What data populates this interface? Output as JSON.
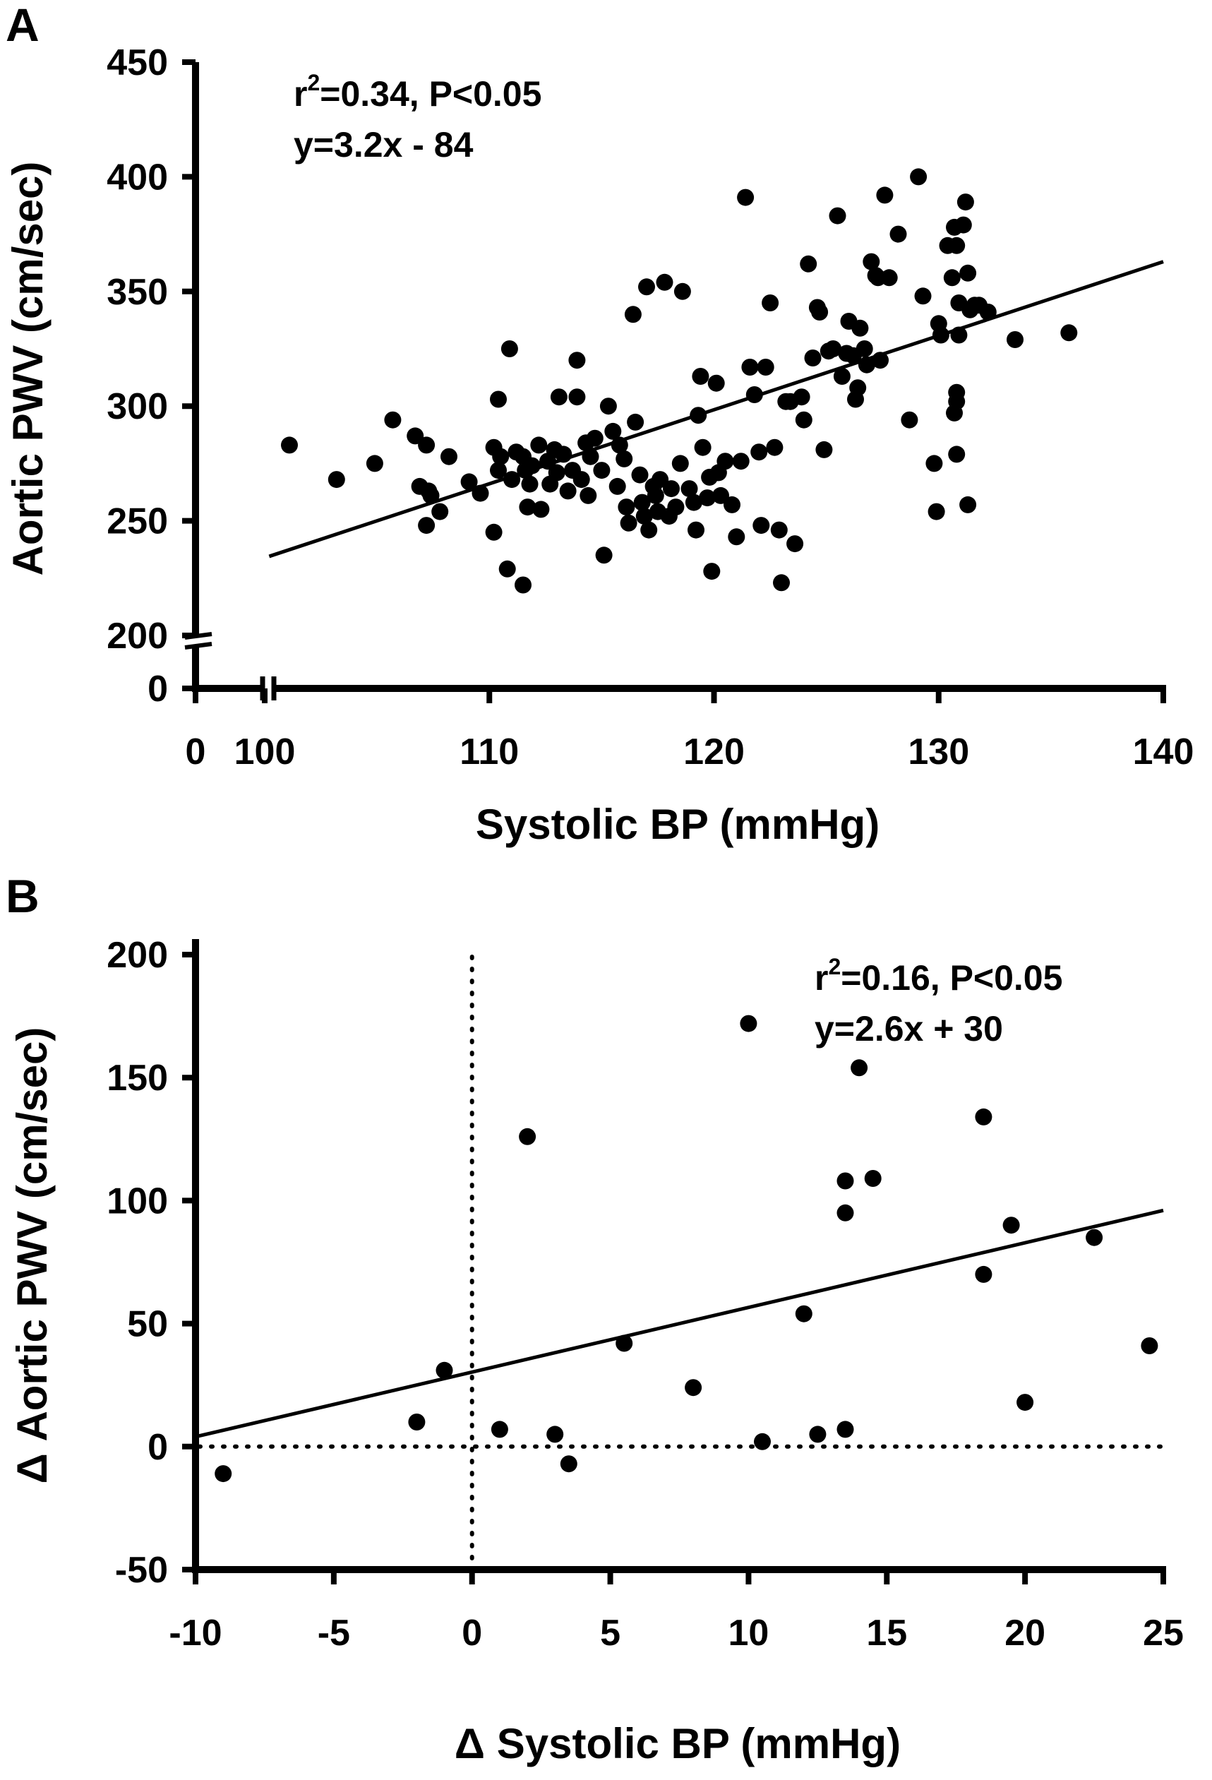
{
  "chart_data": [
    {
      "panel": "A",
      "type": "scatter",
      "xlabel": "Systolic BP (mmHg)",
      "ylabel": "Aortic PWV (cm/sec)",
      "x_ticks": [
        "0",
        "100",
        "110",
        "120",
        "130",
        "140"
      ],
      "y_ticks": [
        "0",
        "200",
        "250",
        "300",
        "350",
        "400",
        "450"
      ],
      "xlim": [
        100,
        140
      ],
      "ylim": [
        200,
        450
      ],
      "axis_break_x": "0 to 100",
      "axis_break_y": "0 to 200",
      "stats": {
        "r2_prefix": "r",
        "r2_sup": "2",
        "r2_text": "=0.34,  P<0.05",
        "equation": "y=3.2x - 84"
      },
      "fit": {
        "slope": 3.2,
        "x_from": 100.2,
        "x_to": 140,
        "y_from": 234.5,
        "y_to": 363
      },
      "points": [
        [
          101.1,
          283
        ],
        [
          103.2,
          268
        ],
        [
          104.9,
          275
        ],
        [
          105.7,
          294
        ],
        [
          106.7,
          287
        ],
        [
          106.9,
          265
        ],
        [
          107.2,
          283
        ],
        [
          107.2,
          248
        ],
        [
          107.3,
          263
        ],
        [
          107.4,
          261
        ],
        [
          107.8,
          254
        ],
        [
          108.2,
          278
        ],
        [
          109.1,
          267
        ],
        [
          109.6,
          262
        ],
        [
          110.2,
          282
        ],
        [
          110.4,
          303
        ],
        [
          110.5,
          278
        ],
        [
          110.4,
          272
        ],
        [
          110.2,
          245
        ],
        [
          110.8,
          229
        ],
        [
          110.9,
          325
        ],
        [
          111.0,
          268
        ],
        [
          111.2,
          280
        ],
        [
          111.5,
          278
        ],
        [
          111.6,
          272
        ],
        [
          111.8,
          266
        ],
        [
          111.7,
          256
        ],
        [
          111.5,
          222
        ],
        [
          111.9,
          274
        ],
        [
          112.2,
          283
        ],
        [
          112.3,
          255
        ],
        [
          112.6,
          276
        ],
        [
          112.7,
          266
        ],
        [
          112.9,
          281
        ],
        [
          113.0,
          271
        ],
        [
          113.1,
          304
        ],
        [
          113.3,
          279
        ],
        [
          113.5,
          263
        ],
        [
          113.7,
          272
        ],
        [
          113.9,
          320
        ],
        [
          113.9,
          304
        ],
        [
          114.1,
          268
        ],
        [
          114.3,
          284
        ],
        [
          114.4,
          261
        ],
        [
          114.5,
          278
        ],
        [
          114.7,
          286
        ],
        [
          115.0,
          272
        ],
        [
          115.1,
          235
        ],
        [
          115.3,
          300
        ],
        [
          115.5,
          289
        ],
        [
          115.7,
          265
        ],
        [
          115.8,
          283
        ],
        [
          116.0,
          277
        ],
        [
          116.1,
          256
        ],
        [
          116.2,
          249
        ],
        [
          116.4,
          340
        ],
        [
          116.5,
          293
        ],
        [
          116.7,
          270
        ],
        [
          116.8,
          258
        ],
        [
          116.9,
          252
        ],
        [
          117.0,
          352
        ],
        [
          117.1,
          246
        ],
        [
          117.3,
          265
        ],
        [
          117.4,
          261
        ],
        [
          117.5,
          254
        ],
        [
          117.6,
          268
        ],
        [
          117.8,
          354
        ],
        [
          118.0,
          252
        ],
        [
          118.1,
          264
        ],
        [
          118.3,
          256
        ],
        [
          118.5,
          275
        ],
        [
          118.6,
          350
        ],
        [
          118.9,
          264
        ],
        [
          119.1,
          258
        ],
        [
          119.2,
          246
        ],
        [
          119.3,
          296
        ],
        [
          119.4,
          313
        ],
        [
          119.5,
          282
        ],
        [
          119.7,
          260
        ],
        [
          119.8,
          269
        ],
        [
          119.9,
          228
        ],
        [
          120.1,
          310
        ],
        [
          120.2,
          271
        ],
        [
          120.3,
          261
        ],
        [
          120.5,
          276
        ],
        [
          120.8,
          257
        ],
        [
          121.0,
          243
        ],
        [
          121.2,
          276
        ],
        [
          121.4,
          391
        ],
        [
          121.6,
          317
        ],
        [
          121.8,
          305
        ],
        [
          122.0,
          280
        ],
        [
          122.1,
          248
        ],
        [
          122.3,
          317
        ],
        [
          122.5,
          345
        ],
        [
          122.7,
          282
        ],
        [
          122.9,
          246
        ],
        [
          123.0,
          223
        ],
        [
          123.2,
          302
        ],
        [
          123.4,
          302
        ],
        [
          123.6,
          240
        ],
        [
          123.9,
          304
        ],
        [
          124.0,
          294
        ],
        [
          124.2,
          362
        ],
        [
          124.4,
          321
        ],
        [
          124.6,
          343
        ],
        [
          124.7,
          341
        ],
        [
          124.9,
          281
        ],
        [
          125.1,
          324
        ],
        [
          125.3,
          325
        ],
        [
          125.5,
          383
        ],
        [
          125.7,
          313
        ],
        [
          125.9,
          323
        ],
        [
          126.0,
          337
        ],
        [
          126.2,
          322
        ],
        [
          126.3,
          303
        ],
        [
          126.4,
          308
        ],
        [
          126.5,
          334
        ],
        [
          126.7,
          325
        ],
        [
          126.8,
          318
        ],
        [
          127.0,
          363
        ],
        [
          127.2,
          357
        ],
        [
          127.3,
          356
        ],
        [
          127.4,
          320
        ],
        [
          127.6,
          392
        ],
        [
          127.8,
          356
        ],
        [
          128.2,
          375
        ],
        [
          128.7,
          294
        ],
        [
          129.1,
          400
        ],
        [
          129.3,
          348
        ],
        [
          129.8,
          275
        ],
        [
          129.9,
          254
        ],
        [
          130.0,
          336
        ],
        [
          130.1,
          331
        ],
        [
          130.4,
          370
        ],
        [
          130.6,
          356
        ],
        [
          130.7,
          378
        ],
        [
          130.8,
          370
        ],
        [
          130.9,
          345
        ],
        [
          130.9,
          331
        ],
        [
          130.8,
          306
        ],
        [
          130.8,
          302
        ],
        [
          130.7,
          297
        ],
        [
          130.8,
          279
        ],
        [
          131.1,
          379
        ],
        [
          131.2,
          389
        ],
        [
          131.3,
          358
        ],
        [
          131.4,
          342
        ],
        [
          131.3,
          257
        ],
        [
          131.6,
          344
        ],
        [
          131.8,
          344
        ],
        [
          132.2,
          341
        ],
        [
          133.4,
          329
        ],
        [
          135.8,
          332
        ]
      ]
    },
    {
      "panel": "B",
      "type": "scatter",
      "xlabel": "Δ Systolic BP (mmHg)",
      "ylabel": "Δ Aortic PWV (cm/sec)",
      "x_ticks": [
        "-10",
        "-5",
        "0",
        "5",
        "10",
        "15",
        "20",
        "25"
      ],
      "y_ticks": [
        "-50",
        "0",
        "50",
        "100",
        "150",
        "200"
      ],
      "xlim": [
        -10,
        25
      ],
      "ylim": [
        -50,
        200
      ],
      "stats": {
        "r2_prefix": "r",
        "r2_sup": "2",
        "r2_text": "=0.16,  P<0.05",
        "equation": "y=2.6x + 30"
      },
      "fit": {
        "slope": 2.6,
        "x_from": -10,
        "x_to": 25,
        "y_from": 4,
        "y_to": 96
      },
      "reference_lines": {
        "x": 0,
        "y": 0
      },
      "points": [
        [
          -9,
          -11
        ],
        [
          -2,
          10
        ],
        [
          -1,
          31
        ],
        [
          1,
          7
        ],
        [
          2,
          126
        ],
        [
          3,
          5
        ],
        [
          3.5,
          -7
        ],
        [
          5.5,
          42
        ],
        [
          8,
          24
        ],
        [
          10,
          172
        ],
        [
          10.5,
          2
        ],
        [
          12,
          54
        ],
        [
          12.5,
          5
        ],
        [
          13.5,
          108
        ],
        [
          13.5,
          95
        ],
        [
          13.5,
          7
        ],
        [
          14,
          154
        ],
        [
          14.5,
          109
        ],
        [
          18.5,
          134
        ],
        [
          18.5,
          70
        ],
        [
          19.5,
          90
        ],
        [
          20,
          18
        ],
        [
          22.5,
          85
        ],
        [
          24.5,
          41
        ]
      ]
    }
  ]
}
